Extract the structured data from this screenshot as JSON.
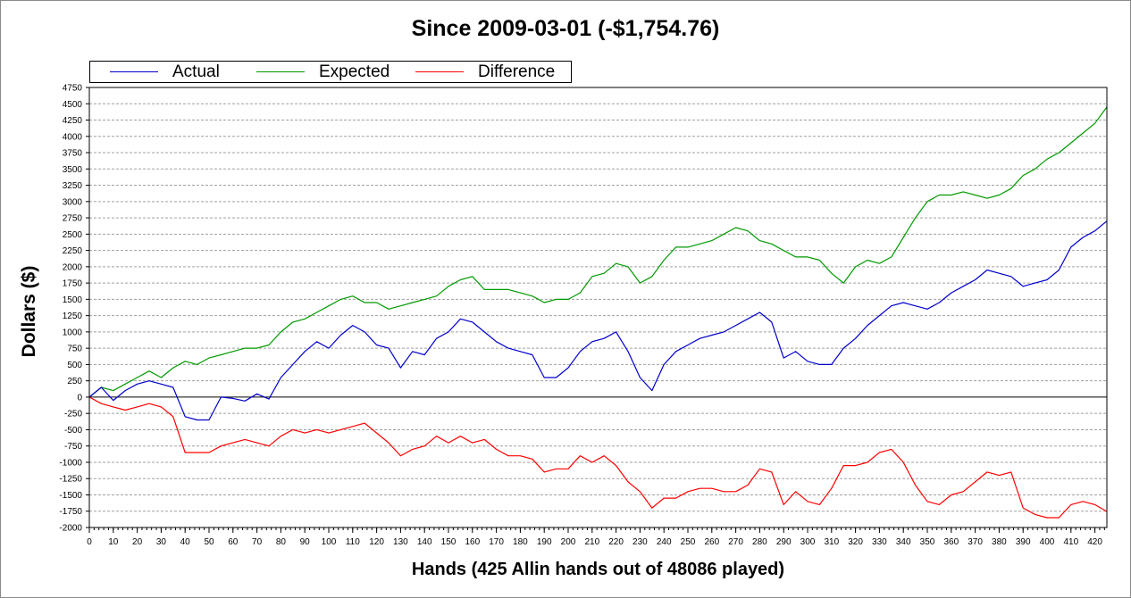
{
  "chart_data": {
    "type": "line",
    "title": "Since 2009-03-01 (-$1,754.76)",
    "xlabel": "Hands (425 Allin hands out of 48086 played)",
    "ylabel": "Dollars ($)",
    "xlim": [
      0,
      425
    ],
    "ylim": [
      -2000,
      4750
    ],
    "xticks": [
      0,
      10,
      20,
      30,
      40,
      50,
      60,
      70,
      80,
      90,
      100,
      110,
      120,
      130,
      140,
      150,
      160,
      170,
      180,
      190,
      200,
      210,
      220,
      230,
      240,
      250,
      260,
      270,
      280,
      290,
      300,
      310,
      320,
      330,
      340,
      350,
      360,
      370,
      380,
      390,
      400,
      410,
      420
    ],
    "yticks": [
      4750,
      4500,
      4250,
      4000,
      3750,
      3500,
      3250,
      3000,
      2750,
      2500,
      2250,
      2000,
      1750,
      1500,
      1250,
      1000,
      750,
      500,
      250,
      0,
      -250,
      -500,
      -750,
      -1000,
      -1250,
      -1500,
      -1750,
      -2000
    ],
    "grid": true,
    "legend_position": "top-left",
    "x": [
      0,
      5,
      10,
      15,
      20,
      25,
      30,
      35,
      40,
      45,
      50,
      55,
      60,
      65,
      70,
      75,
      80,
      85,
      90,
      95,
      100,
      105,
      110,
      115,
      120,
      125,
      130,
      135,
      140,
      145,
      150,
      155,
      160,
      165,
      170,
      175,
      180,
      185,
      190,
      195,
      200,
      205,
      210,
      215,
      220,
      225,
      230,
      235,
      240,
      245,
      250,
      255,
      260,
      265,
      270,
      275,
      280,
      285,
      290,
      295,
      300,
      305,
      310,
      315,
      320,
      325,
      330,
      335,
      340,
      345,
      350,
      355,
      360,
      365,
      370,
      375,
      380,
      385,
      390,
      395,
      400,
      405,
      410,
      415,
      420,
      425
    ],
    "series": [
      {
        "name": "Actual",
        "color": "#0000cc",
        "values": [
          0,
          150,
          -50,
          100,
          200,
          250,
          200,
          150,
          -300,
          -350,
          -350,
          0,
          -20,
          -60,
          50,
          -30,
          300,
          500,
          700,
          850,
          750,
          950,
          1100,
          1000,
          800,
          750,
          450,
          700,
          650,
          900,
          1000,
          1200,
          1150,
          1000,
          850,
          750,
          700,
          650,
          300,
          300,
          450,
          700,
          850,
          900,
          1000,
          700,
          300,
          100,
          500,
          700,
          800,
          900,
          950,
          1000,
          1100,
          1200,
          1300,
          1150,
          600,
          700,
          550,
          500,
          500,
          750,
          900,
          1100,
          1250,
          1400,
          1450,
          1400,
          1350,
          1450,
          1600,
          1700,
          1800,
          1950,
          1900,
          1850,
          1700,
          1750,
          1800,
          1950,
          2300,
          2450,
          2550,
          2700
        ]
      },
      {
        "name": "Expected",
        "color": "#009900",
        "values": [
          0,
          150,
          100,
          200,
          300,
          400,
          300,
          450,
          550,
          500,
          600,
          650,
          700,
          750,
          750,
          800,
          1000,
          1150,
          1200,
          1300,
          1400,
          1500,
          1550,
          1450,
          1450,
          1350,
          1400,
          1450,
          1500,
          1550,
          1700,
          1800,
          1850,
          1650,
          1650,
          1650,
          1600,
          1550,
          1450,
          1500,
          1500,
          1600,
          1850,
          1900,
          2050,
          2000,
          1750,
          1850,
          2100,
          2300,
          2300,
          2350,
          2400,
          2500,
          2600,
          2550,
          2400,
          2350,
          2250,
          2150,
          2150,
          2100,
          1900,
          1750,
          2000,
          2100,
          2050,
          2150,
          2450,
          2750,
          3000,
          3100,
          3100,
          3150,
          3100,
          3050,
          3100,
          3200,
          3400,
          3500,
          3650,
          3750,
          3900,
          4050,
          4200,
          4450
        ]
      },
      {
        "name": "Difference",
        "color": "#ff0000",
        "values": [
          0,
          -100,
          -150,
          -200,
          -150,
          -100,
          -150,
          -300,
          -850,
          -850,
          -850,
          -750,
          -700,
          -650,
          -700,
          -750,
          -600,
          -500,
          -550,
          -500,
          -550,
          -500,
          -450,
          -400,
          -550,
          -700,
          -900,
          -800,
          -750,
          -600,
          -700,
          -600,
          -700,
          -650,
          -800,
          -900,
          -900,
          -950,
          -1150,
          -1100,
          -1100,
          -900,
          -1000,
          -900,
          -1050,
          -1300,
          -1450,
          -1700,
          -1550,
          -1550,
          -1450,
          -1400,
          -1400,
          -1450,
          -1450,
          -1350,
          -1100,
          -1150,
          -1650,
          -1450,
          -1600,
          -1650,
          -1400,
          -1050,
          -1050,
          -1000,
          -850,
          -800,
          -1000,
          -1350,
          -1600,
          -1650,
          -1500,
          -1450,
          -1300,
          -1150,
          -1200,
          -1150,
          -1700,
          -1800,
          -1850,
          -1850,
          -1650,
          -1600,
          -1650,
          -1754.76
        ]
      }
    ]
  }
}
